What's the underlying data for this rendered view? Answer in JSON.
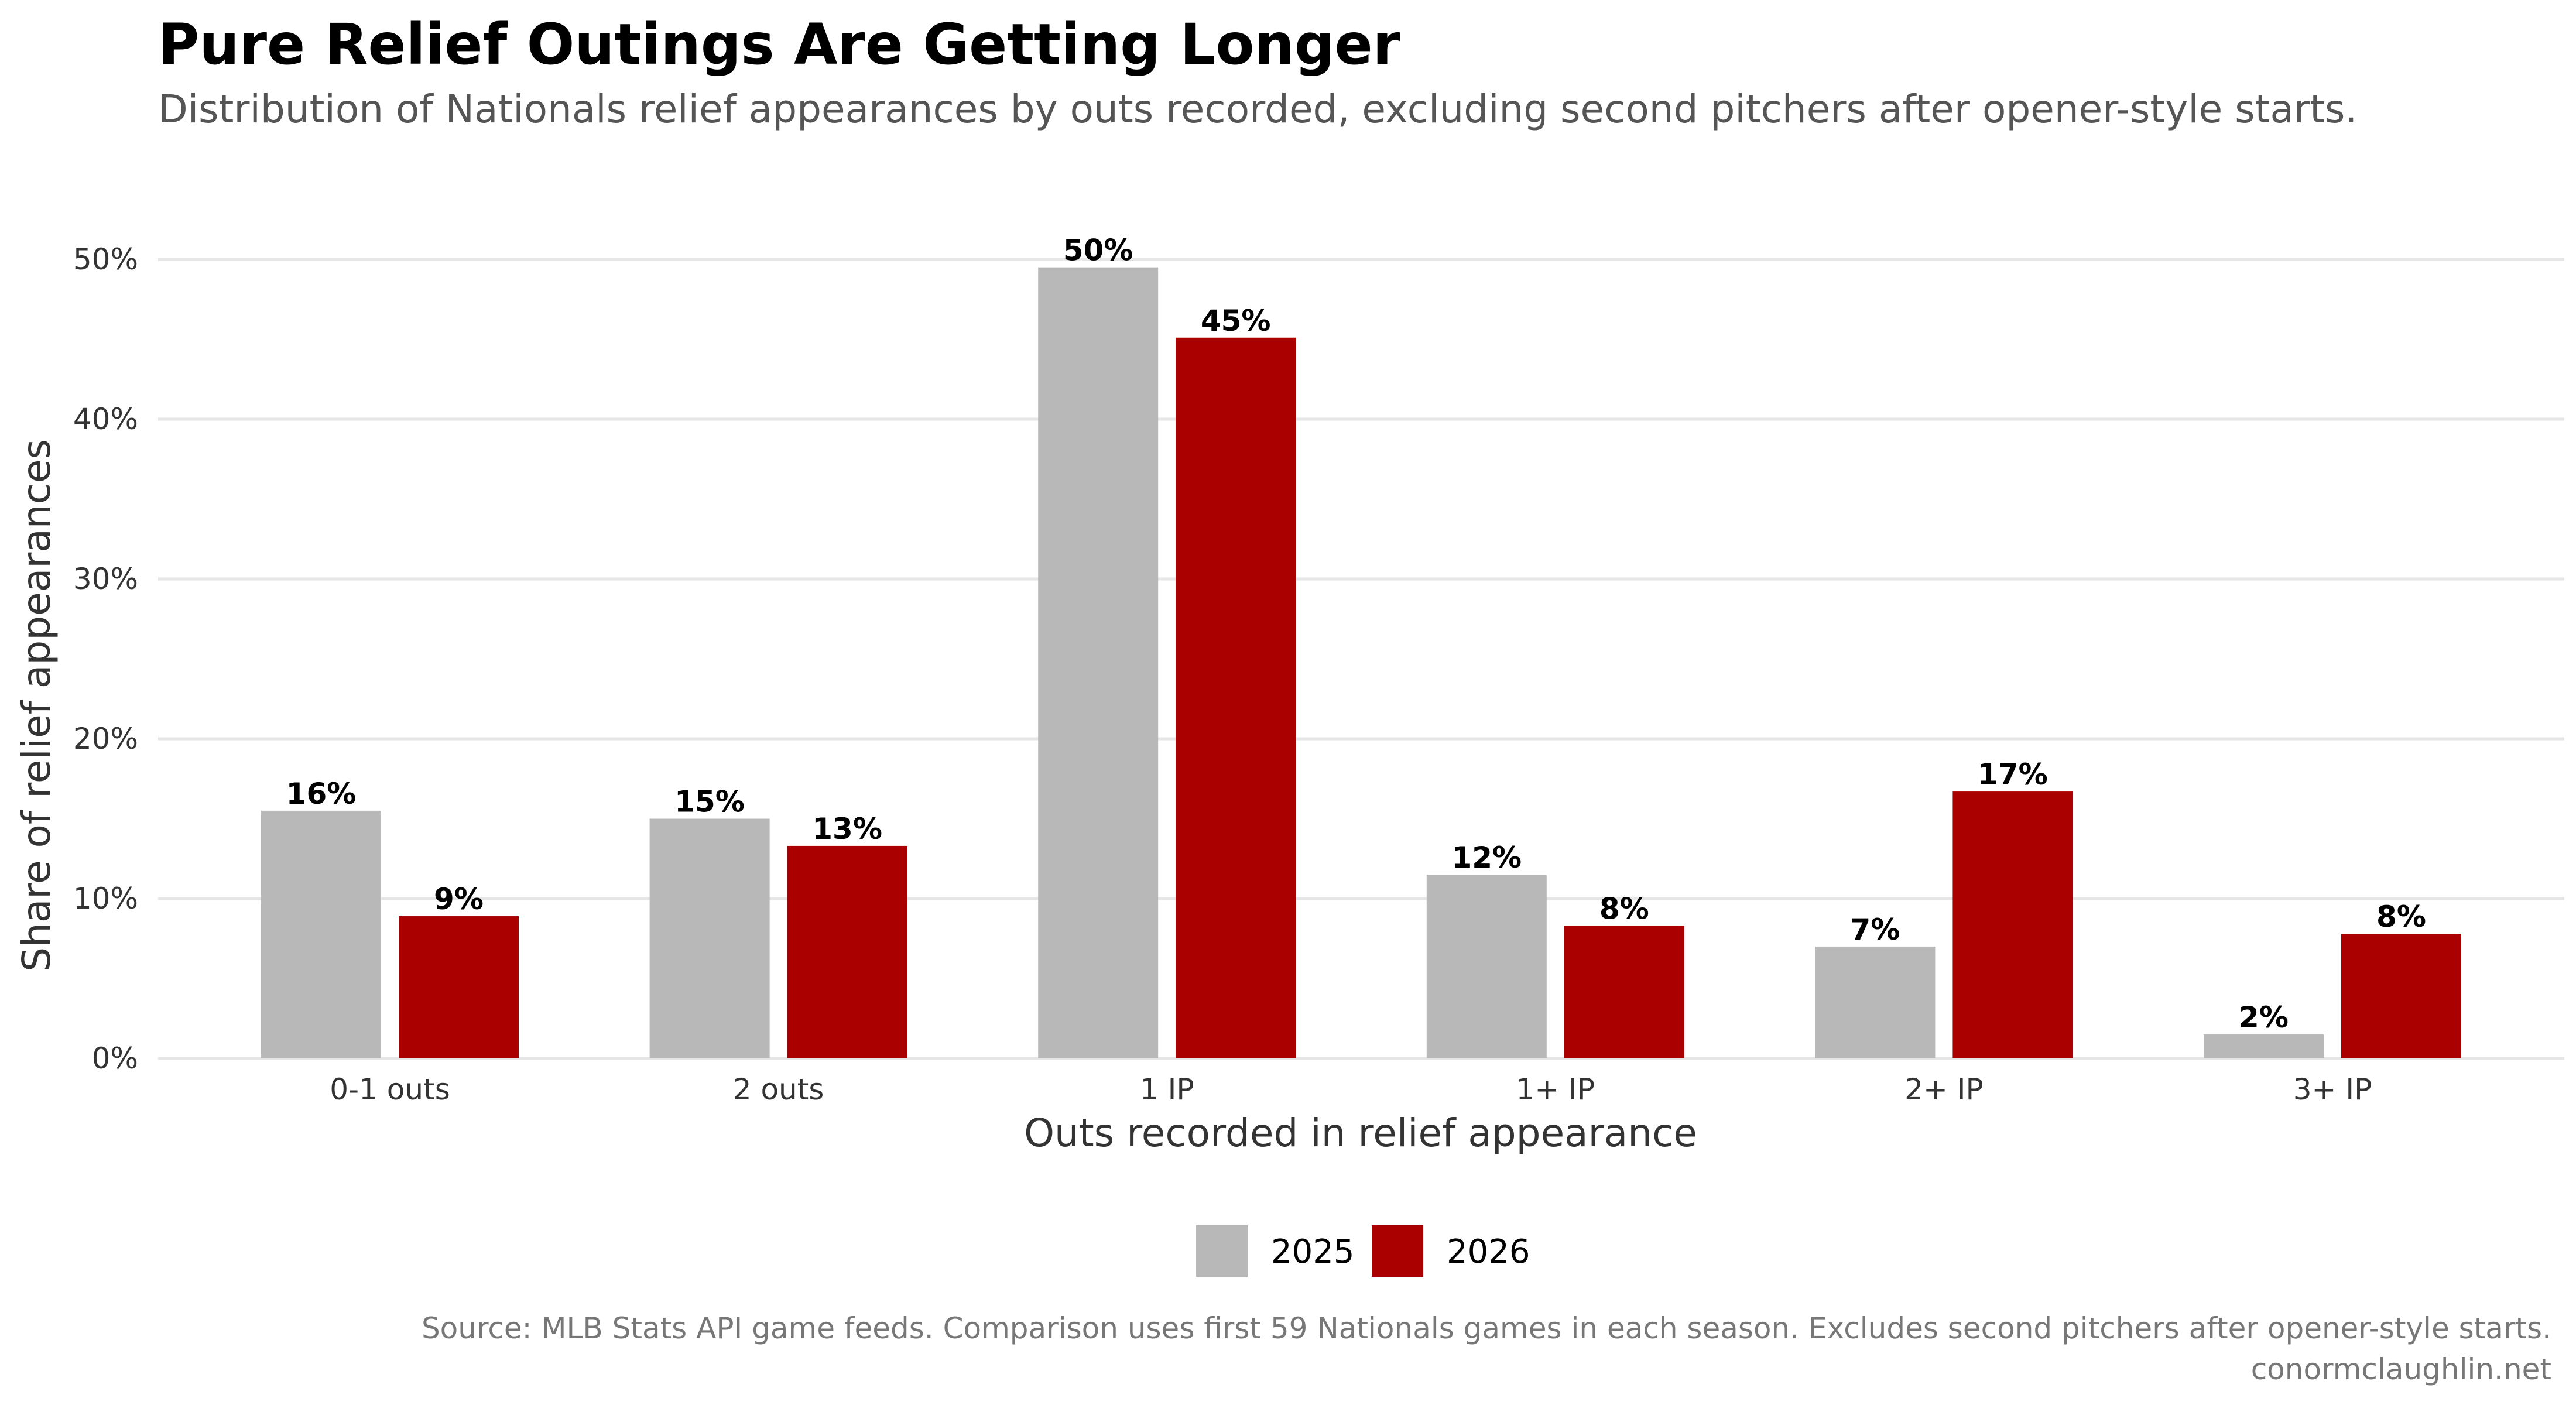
{
  "chart_data": {
    "type": "bar",
    "title": "Pure Relief Outings Are Getting Longer",
    "subtitle": "Distribution of Nationals relief appearances by outs recorded, excluding second pitchers after opener-style starts.",
    "xlabel": "Outs recorded in relief appearance",
    "ylabel": "Share of relief appearances",
    "categories": [
      "0-1 outs",
      "2 outs",
      "1 IP",
      "1+ IP",
      "2+ IP",
      "3+ IP"
    ],
    "series": [
      {
        "name": "2025",
        "color": "#b8b8b8",
        "values": [
          15.5,
          15.0,
          49.5,
          11.5,
          7.0,
          1.5
        ],
        "labels": [
          "16%",
          "15%",
          "50%",
          "12%",
          "7%",
          "2%"
        ]
      },
      {
        "name": "2026",
        "color": "#aa0000",
        "values": [
          8.9,
          13.3,
          45.1,
          8.3,
          16.7,
          7.8
        ],
        "labels": [
          "9%",
          "13%",
          "45%",
          "8%",
          "17%",
          "8%"
        ]
      }
    ],
    "yticks": [
      0,
      10,
      20,
      30,
      40,
      50
    ],
    "ytick_labels": [
      "0%",
      "10%",
      "20%",
      "30%",
      "40%",
      "50%"
    ],
    "ylim": [
      0,
      52
    ],
    "grid": true,
    "legend": "bottom"
  },
  "caption": {
    "line1": "Source: MLB Stats API game feeds. Comparison uses first 59 Nationals games in each season. Excludes second pitchers after opener-style starts.",
    "line2": "conormclaughlin.net"
  }
}
